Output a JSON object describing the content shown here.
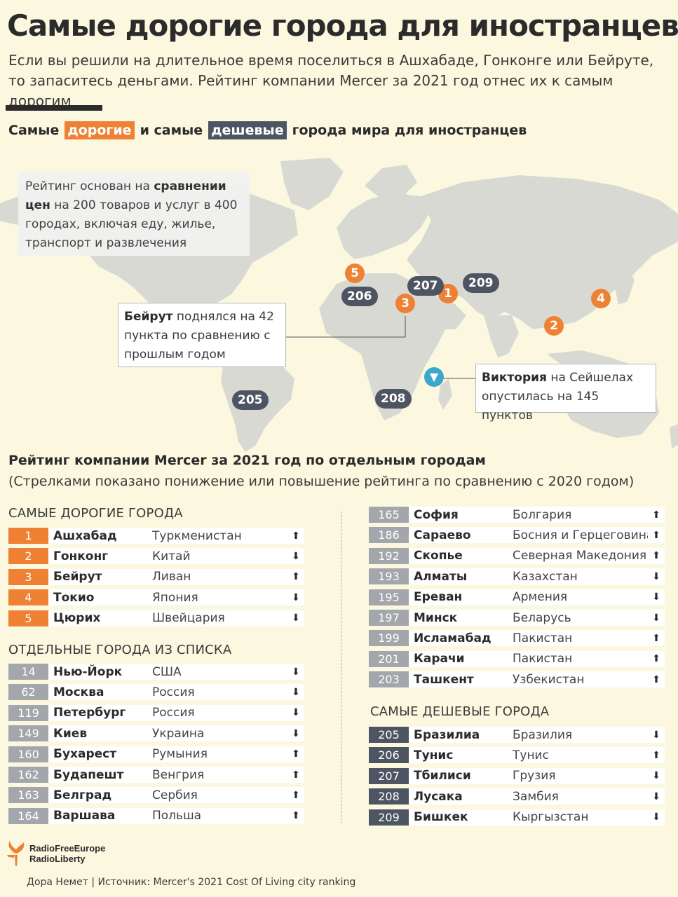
{
  "title": "Самые дорогие города для иностранцев",
  "subtitle": "Если вы решили на длительное время поселиться в Ашхабаде, Гонконге или Бейруте, то запаситесь деньгами. Рейтинг компании Mercer за 2021 год отнес их к самым дорогим",
  "map_heading": {
    "prefix": "Самые",
    "expensive": "дорогие",
    "middle": "и самые",
    "cheap": "дешевые",
    "suffix": "города мира для иностранцев"
  },
  "notes": {
    "top": {
      "pre": "Рейтинг основан на ",
      "bold": "сравнении цен",
      "post": " на 200 товаров и услуг в 400 городах, включая еду, жилье, транспорт и развлечения"
    },
    "beirut": {
      "bold": "Бейрут",
      "post": " поднялся на 42 пункта по сравнению с прошлым годом"
    },
    "victoria": {
      "bold": "Виктория",
      "post": " на Сейшелах опустилась на 145 пунктов"
    }
  },
  "map_markers": {
    "expensive": [
      "1",
      "2",
      "3",
      "4",
      "5"
    ],
    "cheap": [
      "205",
      "206",
      "207",
      "208",
      "209"
    ]
  },
  "ranking": {
    "heading": "Рейтинг компании Mercer за 2021 год по отдельным городам",
    "subheading": "(Стрелками показано понижение или повышение рейтинга по сравнению с 2020 годом)"
  },
  "sections": {
    "expensive": "САМЫЕ ДОРОГИЕ ГОРОДА",
    "selected": "ОТДЕЛЬНЫЕ ГОРОДА ИЗ СПИСКА",
    "cheap": "САМЫЕ ДЕШЕВЫЕ ГОРОДА"
  },
  "expensive": [
    {
      "rank": "1",
      "city": "Ашхабад",
      "country": "Туркменистан",
      "trend": "up"
    },
    {
      "rank": "2",
      "city": "Гонконг",
      "country": "Китай",
      "trend": "down"
    },
    {
      "rank": "3",
      "city": "Бейрут",
      "country": "Ливан",
      "trend": "up"
    },
    {
      "rank": "4",
      "city": "Токио",
      "country": "Япония",
      "trend": "down"
    },
    {
      "rank": "5",
      "city": "Цюрих",
      "country": "Швейцария",
      "trend": "down"
    }
  ],
  "selected_left": [
    {
      "rank": "14",
      "city": "Нью-Йорк",
      "country": "США",
      "trend": "down"
    },
    {
      "rank": "62",
      "city": "Москва",
      "country": "Россия",
      "trend": "down"
    },
    {
      "rank": "119",
      "city": "Петербург",
      "country": "Россия",
      "trend": "down"
    },
    {
      "rank": "149",
      "city": "Киев",
      "country": "Украина",
      "trend": "down"
    },
    {
      "rank": "160",
      "city": "Бухарест",
      "country": "Румыния",
      "trend": "up"
    },
    {
      "rank": "162",
      "city": "Будапешт",
      "country": "Венгрия",
      "trend": "up"
    },
    {
      "rank": "163",
      "city": "Белград",
      "country": "Сербия",
      "trend": "up"
    },
    {
      "rank": "164",
      "city": "Варшава",
      "country": "Польша",
      "trend": "up"
    }
  ],
  "selected_right": [
    {
      "rank": "165",
      "city": "София",
      "country": "Болгария",
      "trend": "up"
    },
    {
      "rank": "186",
      "city": "Сараево",
      "country": "Босния и Герцеговина",
      "trend": "up"
    },
    {
      "rank": "192",
      "city": "Скопье",
      "country": "Северная Македония",
      "trend": "up"
    },
    {
      "rank": "193",
      "city": "Алматы",
      "country": "Казахстан",
      "trend": "down"
    },
    {
      "rank": "195",
      "city": "Ереван",
      "country": "Армения",
      "trend": "down"
    },
    {
      "rank": "197",
      "city": "Минск",
      "country": "Беларусь",
      "trend": "down"
    },
    {
      "rank": "199",
      "city": "Исламабад",
      "country": "Пакистан",
      "trend": "up"
    },
    {
      "rank": "201",
      "city": "Карачи",
      "country": "Пакистан",
      "trend": "up"
    },
    {
      "rank": "203",
      "city": "Ташкент",
      "country": "Узбекистан",
      "trend": "up"
    }
  ],
  "cheap": [
    {
      "rank": "205",
      "city": "Бразилиа",
      "country": "Бразилия",
      "trend": "down"
    },
    {
      "rank": "206",
      "city": "Тунис",
      "country": "Тунис",
      "trend": "up"
    },
    {
      "rank": "207",
      "city": "Тбилиси",
      "country": "Грузия",
      "trend": "down"
    },
    {
      "rank": "208",
      "city": "Лусака",
      "country": "Замбия",
      "trend": "down"
    },
    {
      "rank": "209",
      "city": "Бишкек",
      "country": "Кыргызстан",
      "trend": "down"
    }
  ],
  "logo": {
    "line1": "RadioFreeEurope",
    "line2": "RadioLiberty"
  },
  "credit": "Дора Немет | Источник: Mercer's 2021 Cost Of Living city ranking",
  "colors": {
    "expensive": "#ee8133",
    "cheap": "#4d5562",
    "selected": "#a3a6ab",
    "background": "#fcf8e0",
    "victoria_marker": "#3ca6cc"
  }
}
